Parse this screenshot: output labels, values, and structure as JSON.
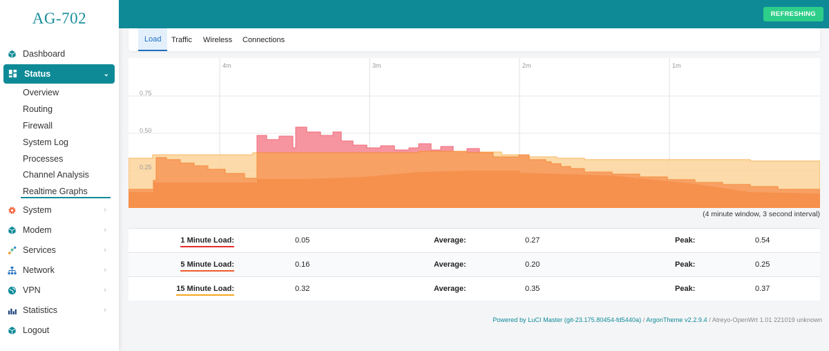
{
  "brand": "AG-702",
  "sidebar": {
    "items": [
      {
        "label": "Dashboard",
        "icon": "cube-icon"
      },
      {
        "label": "Status",
        "icon": "dashboard-grid-icon"
      },
      {
        "label": "System",
        "icon": "gear-icon"
      },
      {
        "label": "Modem",
        "icon": "cube-icon"
      },
      {
        "label": "Services",
        "icon": "share-nodes-icon"
      },
      {
        "label": "Network",
        "icon": "sitemap-icon"
      },
      {
        "label": "VPN",
        "icon": "globe-icon"
      },
      {
        "label": "Statistics",
        "icon": "bar-chart-icon"
      },
      {
        "label": "Logout",
        "icon": "cube-icon"
      }
    ],
    "status_sub": [
      "Overview",
      "Routing",
      "Firewall",
      "System Log",
      "Processes",
      "Channel Analysis",
      "Realtime Graphs"
    ]
  },
  "header": {
    "refresh_label": "REFRESHING"
  },
  "tabs": [
    {
      "label": "Load"
    },
    {
      "label": "Traffic"
    },
    {
      "label": "Wireless"
    },
    {
      "label": "Connections"
    }
  ],
  "graph": {
    "time_labels": [
      "4m",
      "3m",
      "2m",
      "1m"
    ],
    "y_labels": [
      "0.75",
      "0.50",
      "0.25"
    ],
    "window_text": "(4 minute window, 3 second interval)"
  },
  "stats": [
    {
      "label": "1 Minute Load:",
      "value": "0.05",
      "avg_label": "Average:",
      "avg": "0.27",
      "peak_label": "Peak:",
      "peak": "0.54",
      "color": "#e62b2b"
    },
    {
      "label": "5 Minute Load:",
      "value": "0.16",
      "avg_label": "Average:",
      "avg": "0.20",
      "peak_label": "Peak:",
      "peak": "0.25",
      "color": "#f05a2e"
    },
    {
      "label": "15 Minute Load:",
      "value": "0.32",
      "avg_label": "Average:",
      "avg": "0.35",
      "peak_label": "Peak:",
      "peak": "0.37",
      "color": "#f5a623"
    }
  ],
  "footer": {
    "luci": "Powered by LuCI Master (git-23.175.80454-fd5440a)",
    "sep1": " / ",
    "theme": "ArgonTheme v2.2.9.4",
    "sep2": " / ",
    "build": "Atreyo-OpenWrt 1.01 221019 unknown"
  },
  "colors": {
    "accent": "#0e8a97",
    "badge": "#2dce89",
    "load1": "#f58a95",
    "load5": "#f7a35c",
    "load15": "#fcd49a"
  }
}
